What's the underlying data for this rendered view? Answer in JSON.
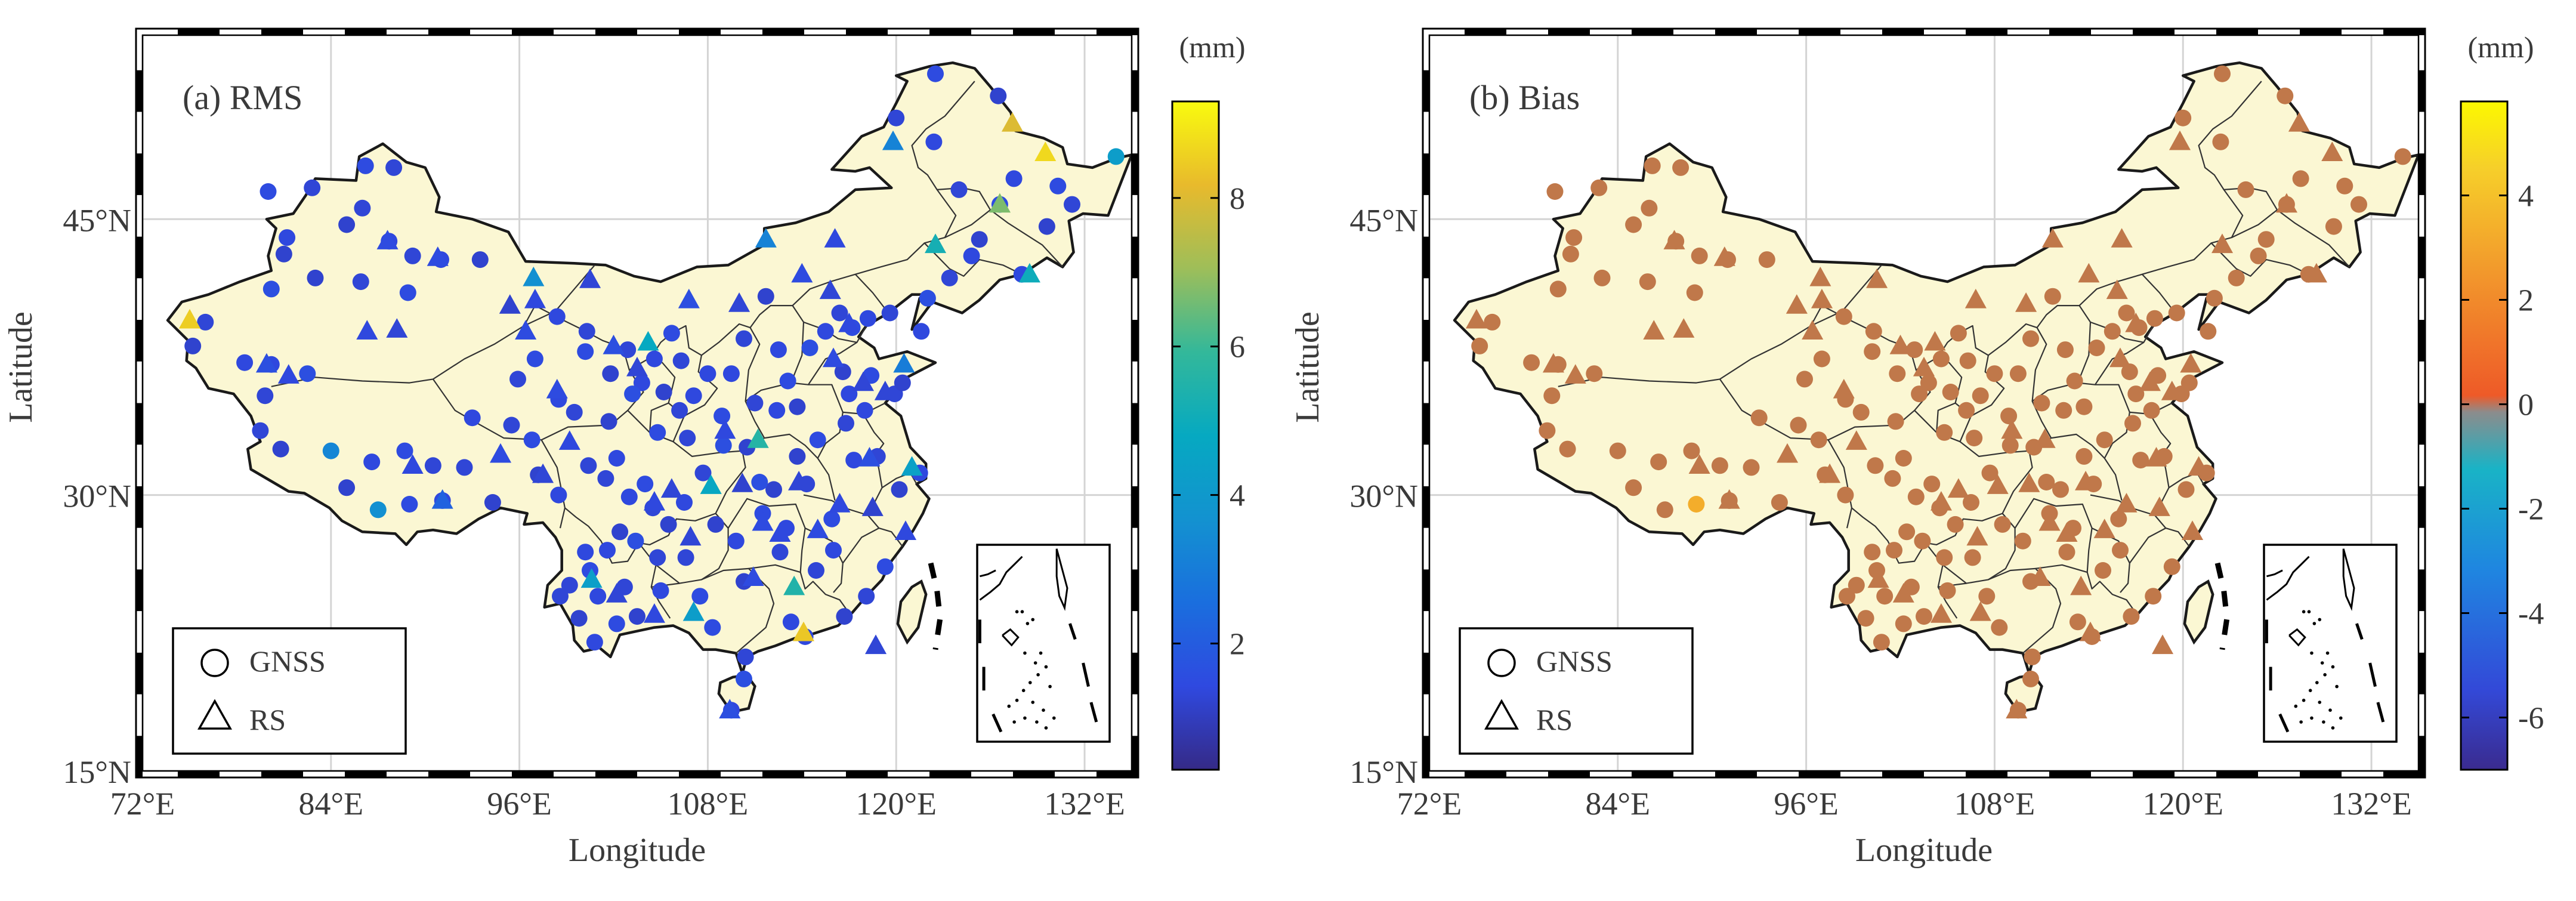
{
  "map_labels": {
    "x_ticks": [
      "72°E",
      "84°E",
      "96°E",
      "108°E",
      "120°E",
      "132°E"
    ],
    "y_ticks": [
      "45°N",
      "30°N",
      "15°N"
    ],
    "xlabel": "Longitude",
    "ylabel": "Latitude",
    "legend": {
      "gnss": "GNSS",
      "rs": "RS"
    },
    "unit": "(mm)"
  },
  "extent": {
    "lon": [
      72,
      135
    ],
    "lat": [
      15,
      55
    ]
  },
  "panels": [
    {
      "id": "rms",
      "title": "(a) RMS",
      "colorbar": {
        "range": [
          0.3,
          9.3
        ],
        "ticks": [
          "2",
          "4",
          "6",
          "8"
        ],
        "tick_values": [
          2,
          4,
          6,
          8
        ],
        "scheme": "parula"
      }
    },
    {
      "id": "bias",
      "title": "(b) Bias",
      "colorbar": {
        "range": [
          -7,
          5.8
        ],
        "ticks": [
          "4",
          "2",
          "0",
          "-2",
          "-4",
          "-6"
        ],
        "tick_values": [
          4,
          2,
          0,
          -2,
          -4,
          -6
        ],
        "scheme": "diverging"
      }
    }
  ],
  "stations": {
    "gnss": [
      [
        75.2,
        38.1,
        1.2,
        1.3
      ],
      [
        76.0,
        39.4,
        1.3,
        1.4
      ],
      [
        78.5,
        37.2,
        1.4,
        1.2
      ],
      [
        80.2,
        41.2,
        1.6,
        1.3
      ],
      [
        81.2,
        44.0,
        1.4,
        1.2
      ],
      [
        81.0,
        43.1,
        1.2,
        1.4
      ],
      [
        80.0,
        46.5,
        1.5,
        1.3
      ],
      [
        82.8,
        46.7,
        1.3,
        1.2
      ],
      [
        85.0,
        44.7,
        1.2,
        1.3
      ],
      [
        86.0,
        45.6,
        1.3,
        1.4
      ],
      [
        87.7,
        43.8,
        1.4,
        1.2
      ],
      [
        86.2,
        47.9,
        1.5,
        1.3
      ],
      [
        88.0,
        47.8,
        1.3,
        1.2
      ],
      [
        83.0,
        41.8,
        1.2,
        1.4
      ],
      [
        85.9,
        41.6,
        1.3,
        1.3
      ],
      [
        88.9,
        41.0,
        1.5,
        1.2
      ],
      [
        91.0,
        42.8,
        1.4,
        1.3
      ],
      [
        93.5,
        42.8,
        1.2,
        1.4
      ],
      [
        89.2,
        43.0,
        1.3,
        1.2
      ],
      [
        80.2,
        37.1,
        1.4,
        1.2
      ],
      [
        82.5,
        36.6,
        1.6,
        1.3
      ],
      [
        79.8,
        35.4,
        1.3,
        1.2
      ],
      [
        80.8,
        32.5,
        1.2,
        1.4
      ],
      [
        79.5,
        33.5,
        1.3,
        1.3
      ],
      [
        84.0,
        32.4,
        3.3,
        1.5
      ],
      [
        86.6,
        31.8,
        1.4,
        1.3
      ],
      [
        88.7,
        32.4,
        1.5,
        1.2
      ],
      [
        90.5,
        31.6,
        1.3,
        1.4
      ],
      [
        85.0,
        30.4,
        1.2,
        1.3
      ],
      [
        87.0,
        29.2,
        3.6,
        1.2
      ],
      [
        89.0,
        29.5,
        1.5,
        3.3
      ],
      [
        91.1,
        29.7,
        1.4,
        1.3
      ],
      [
        92.5,
        31.5,
        1.3,
        1.2
      ],
      [
        94.3,
        29.6,
        1.2,
        1.4
      ],
      [
        93.0,
        34.2,
        1.4,
        1.3
      ],
      [
        95.9,
        36.3,
        1.3,
        1.2
      ],
      [
        97.0,
        37.4,
        1.5,
        1.3
      ],
      [
        98.4,
        39.7,
        1.4,
        1.2
      ],
      [
        100.3,
        38.9,
        1.3,
        1.4
      ],
      [
        101.8,
        36.6,
        1.2,
        1.3
      ],
      [
        103.8,
        36.1,
        1.4,
        1.2
      ],
      [
        102.9,
        37.9,
        1.3,
        1.3
      ],
      [
        100.2,
        37.8,
        1.5,
        1.4
      ],
      [
        98.5,
        35.2,
        1.4,
        1.3
      ],
      [
        99.5,
        34.5,
        1.3,
        1.2
      ],
      [
        101.7,
        34.0,
        1.2,
        1.4
      ],
      [
        103.2,
        35.5,
        1.6,
        1.3
      ],
      [
        104.6,
        37.4,
        1.4,
        1.2
      ],
      [
        105.7,
        38.8,
        1.5,
        1.3
      ],
      [
        106.3,
        37.3,
        1.3,
        1.4
      ],
      [
        105.2,
        35.6,
        1.2,
        1.3
      ],
      [
        107.1,
        35.4,
        1.4,
        1.2
      ],
      [
        106.7,
        33.1,
        1.3,
        1.3
      ],
      [
        104.0,
        30.6,
        1.5,
        1.4
      ],
      [
        103.0,
        29.9,
        1.4,
        1.3
      ],
      [
        101.5,
        30.9,
        1.3,
        1.2
      ],
      [
        102.4,
        28.0,
        1.2,
        1.4
      ],
      [
        100.2,
        26.9,
        1.4,
        1.3
      ],
      [
        99.2,
        25.1,
        1.3,
        1.2
      ],
      [
        100.5,
        25.9,
        1.5,
        1.3
      ],
      [
        101.0,
        24.5,
        1.4,
        1.4
      ],
      [
        102.7,
        25.0,
        1.3,
        1.3
      ],
      [
        103.5,
        23.4,
        1.2,
        1.2
      ],
      [
        100.8,
        22.0,
        1.4,
        1.4
      ],
      [
        102.2,
        23.0,
        1.5,
        1.3
      ],
      [
        98.6,
        24.5,
        1.3,
        1.2
      ],
      [
        99.8,
        23.3,
        1.2,
        1.3
      ],
      [
        101.6,
        27.0,
        1.4,
        1.4
      ],
      [
        103.4,
        27.5,
        1.6,
        1.3
      ],
      [
        104.5,
        29.3,
        1.3,
        1.2
      ],
      [
        105.5,
        28.4,
        1.2,
        1.3
      ],
      [
        106.5,
        29.6,
        1.4,
        1.4
      ],
      [
        107.7,
        31.2,
        1.3,
        1.3
      ],
      [
        108.9,
        34.3,
        1.5,
        1.2
      ],
      [
        109.5,
        36.6,
        1.4,
        1.3
      ],
      [
        110.3,
        38.5,
        1.3,
        1.4
      ],
      [
        111.7,
        40.8,
        1.2,
        1.3
      ],
      [
        112.5,
        37.9,
        1.4,
        1.2
      ],
      [
        113.1,
        36.2,
        1.5,
        1.3
      ],
      [
        111.0,
        35.0,
        1.3,
        1.4
      ],
      [
        112.4,
        34.6,
        1.4,
        1.3
      ],
      [
        113.7,
        34.8,
        1.2,
        1.2
      ],
      [
        114.5,
        38.0,
        1.6,
        1.4
      ],
      [
        115.5,
        38.9,
        1.4,
        1.3
      ],
      [
        116.4,
        39.9,
        1.3,
        1.2
      ],
      [
        117.2,
        39.1,
        1.5,
        1.3
      ],
      [
        118.2,
        39.6,
        1.4,
        1.4
      ],
      [
        119.6,
        39.9,
        1.3,
        1.3
      ],
      [
        116.6,
        36.7,
        1.2,
        1.2
      ],
      [
        117.0,
        35.5,
        1.4,
        1.3
      ],
      [
        118.4,
        36.5,
        1.5,
        1.4
      ],
      [
        119.9,
        35.5,
        1.3,
        1.3
      ],
      [
        120.4,
        36.1,
        1.2,
        1.2
      ],
      [
        121.6,
        38.9,
        1.4,
        1.3
      ],
      [
        122.0,
        40.7,
        1.6,
        1.4
      ],
      [
        123.4,
        41.8,
        1.3,
        1.3
      ],
      [
        124.8,
        43.0,
        1.4,
        1.2
      ],
      [
        125.3,
        43.9,
        1.2,
        1.3
      ],
      [
        126.6,
        45.8,
        1.5,
        1.4
      ],
      [
        124.0,
        46.6,
        1.3,
        1.3
      ],
      [
        127.5,
        47.2,
        1.4,
        1.2
      ],
      [
        129.6,
        44.6,
        1.2,
        1.3
      ],
      [
        130.3,
        46.8,
        1.5,
        1.4
      ],
      [
        131.2,
        45.8,
        1.3,
        1.3
      ],
      [
        122.4,
        49.2,
        1.4,
        1.2
      ],
      [
        120.0,
        50.5,
        1.3,
        1.3
      ],
      [
        126.5,
        51.7,
        1.2,
        1.4
      ],
      [
        122.5,
        52.9,
        1.5,
        1.3
      ],
      [
        134.0,
        48.4,
        4.2,
        1.4
      ],
      [
        128.0,
        42.0,
        1.4,
        1.3
      ],
      [
        114.3,
        30.6,
        1.3,
        1.2
      ],
      [
        112.2,
        30.3,
        1.2,
        1.3
      ],
      [
        111.3,
        30.7,
        1.6,
        1.4
      ],
      [
        113.0,
        28.2,
        1.4,
        1.3
      ],
      [
        112.6,
        26.9,
        1.3,
        1.2
      ],
      [
        115.9,
        28.7,
        1.5,
        1.3
      ],
      [
        117.3,
        31.9,
        1.4,
        1.4
      ],
      [
        118.8,
        32.1,
        1.3,
        1.3
      ],
      [
        120.2,
        30.3,
        1.2,
        1.2
      ],
      [
        121.5,
        31.2,
        1.4,
        1.3
      ],
      [
        119.3,
        26.1,
        1.5,
        1.4
      ],
      [
        118.1,
        24.5,
        1.3,
        1.3
      ],
      [
        113.3,
        23.1,
        1.4,
        1.2
      ],
      [
        110.3,
        25.3,
        1.2,
        1.3
      ],
      [
        108.3,
        22.8,
        1.5,
        1.4
      ],
      [
        110.4,
        21.2,
        1.3,
        1.3
      ],
      [
        114.2,
        22.3,
        1.4,
        1.2
      ],
      [
        116.7,
        23.4,
        1.2,
        1.3
      ],
      [
        110.3,
        20.0,
        1.6,
        1.4
      ],
      [
        109.5,
        18.3,
        1.4,
        1.3
      ],
      [
        106.6,
        26.6,
        1.3,
        1.2
      ],
      [
        107.5,
        24.5,
        1.5,
        1.3
      ],
      [
        105.0,
        24.8,
        1.4,
        1.4
      ],
      [
        104.8,
        26.6,
        1.3,
        1.3
      ],
      [
        108.5,
        28.4,
        1.2,
        1.2
      ],
      [
        109.8,
        27.5,
        1.4,
        1.3
      ],
      [
        111.5,
        29.0,
        1.5,
        1.4
      ],
      [
        114.9,
        25.9,
        1.3,
        1.3
      ],
      [
        116.0,
        27.0,
        1.4,
        1.2
      ],
      [
        113.7,
        32.1,
        1.2,
        1.3
      ],
      [
        115.0,
        33.0,
        1.5,
        1.4
      ],
      [
        116.8,
        33.9,
        1.3,
        1.3
      ],
      [
        118.0,
        34.6,
        1.4,
        1.2
      ],
      [
        110.5,
        32.6,
        1.2,
        1.3
      ],
      [
        109.0,
        32.7,
        1.6,
        1.4
      ],
      [
        108.0,
        36.6,
        1.4,
        1.3
      ],
      [
        106.2,
        34.6,
        1.3,
        1.2
      ],
      [
        104.8,
        33.4,
        1.5,
        1.3
      ],
      [
        102.2,
        32.0,
        1.4,
        1.4
      ],
      [
        100.4,
        31.6,
        1.3,
        1.3
      ],
      [
        97.2,
        31.1,
        1.2,
        1.2
      ],
      [
        98.5,
        30.0,
        1.4,
        1.3
      ],
      [
        96.8,
        33.0,
        1.5,
        1.4
      ],
      [
        95.5,
        33.8,
        1.3,
        1.3
      ]
    ],
    "rs": [
      [
        75.0,
        39.5,
        8.5,
        1.5
      ],
      [
        79.9,
        37.1,
        1.6,
        1.3
      ],
      [
        81.3,
        36.5,
        1.4,
        1.2
      ],
      [
        87.6,
        43.8,
        1.5,
        1.3
      ],
      [
        86.3,
        38.9,
        1.4,
        1.4
      ],
      [
        88.2,
        39.0,
        1.3,
        1.3
      ],
      [
        90.8,
        42.9,
        1.5,
        1.2
      ],
      [
        95.4,
        40.3,
        1.2,
        1.3
      ],
      [
        97.0,
        40.6,
        1.4,
        1.4
      ],
      [
        100.5,
        41.7,
        1.3,
        1.3
      ],
      [
        96.9,
        41.8,
        3.6,
        1.2
      ],
      [
        104.2,
        38.3,
        4.8,
        1.3
      ],
      [
        106.8,
        40.6,
        1.6,
        1.4
      ],
      [
        110.0,
        40.4,
        1.3,
        1.3
      ],
      [
        111.7,
        43.9,
        3.2,
        1.2
      ],
      [
        116.1,
        43.9,
        1.4,
        1.3
      ],
      [
        115.8,
        41.1,
        1.3,
        1.4
      ],
      [
        114.0,
        42.0,
        1.5,
        1.3
      ],
      [
        122.5,
        43.6,
        5.2,
        1.2
      ],
      [
        126.6,
        45.8,
        6.7,
        1.3
      ],
      [
        129.5,
        48.6,
        8.7,
        1.4
      ],
      [
        127.4,
        50.2,
        8.0,
        1.3
      ],
      [
        119.8,
        49.2,
        3.2,
        1.2
      ],
      [
        128.5,
        42.0,
        5.0,
        1.3
      ],
      [
        91.1,
        29.7,
        2.2,
        1.4
      ],
      [
        89.2,
        31.6,
        1.4,
        1.3
      ],
      [
        94.8,
        32.2,
        1.5,
        1.2
      ],
      [
        97.5,
        31.1,
        1.3,
        1.3
      ],
      [
        99.2,
        32.9,
        1.4,
        1.4
      ],
      [
        102.0,
        38.1,
        1.6,
        1.3
      ],
      [
        103.5,
        36.9,
        1.3,
        1.2
      ],
      [
        98.4,
        35.7,
        1.5,
        1.3
      ],
      [
        104.6,
        29.6,
        1.4,
        1.4
      ],
      [
        106.9,
        27.7,
        1.3,
        1.3
      ],
      [
        108.2,
        30.5,
        4.7,
        1.2
      ],
      [
        110.2,
        30.6,
        1.2,
        1.3
      ],
      [
        111.2,
        33.0,
        5.6,
        1.4
      ],
      [
        112.6,
        27.9,
        1.4,
        1.3
      ],
      [
        113.8,
        30.7,
        1.3,
        1.2
      ],
      [
        115.0,
        28.1,
        1.5,
        1.3
      ],
      [
        116.4,
        29.5,
        1.4,
        1.4
      ],
      [
        118.3,
        32.0,
        1.6,
        1.3
      ],
      [
        119.3,
        35.6,
        1.3,
        1.2
      ],
      [
        116.0,
        37.4,
        1.5,
        1.3
      ],
      [
        117.0,
        39.3,
        1.4,
        1.4
      ],
      [
        120.5,
        37.1,
        3.0,
        1.2
      ],
      [
        117.9,
        36.1,
        1.3,
        1.3
      ],
      [
        121.0,
        31.5,
        4.4,
        1.4
      ],
      [
        118.5,
        29.3,
        1.2,
        1.3
      ],
      [
        120.6,
        28.0,
        1.4,
        1.2
      ],
      [
        114.1,
        22.5,
        8.4,
        1.3
      ],
      [
        113.5,
        25.0,
        5.5,
        1.4
      ],
      [
        110.9,
        25.5,
        1.5,
        1.3
      ],
      [
        107.1,
        23.6,
        4.2,
        1.2
      ],
      [
        104.6,
        23.5,
        1.4,
        1.3
      ],
      [
        102.2,
        24.6,
        1.3,
        1.4
      ],
      [
        100.6,
        25.4,
        4.3,
        1.3
      ],
      [
        109.4,
        18.3,
        1.6,
        1.2
      ],
      [
        118.7,
        21.8,
        1.3,
        1.3
      ],
      [
        111.5,
        28.5,
        1.5,
        1.4
      ],
      [
        109.1,
        33.5,
        1.4,
        1.3
      ],
      [
        105.7,
        30.3,
        1.3,
        1.2
      ],
      [
        96.4,
        38.9,
        1.5,
        1.3
      ]
    ]
  },
  "colors": {
    "land": "#fbf7d3",
    "ocean": "#ffffff",
    "border": "#1a1a1a",
    "grid": "#d4d4d4",
    "frame": "#000000"
  }
}
